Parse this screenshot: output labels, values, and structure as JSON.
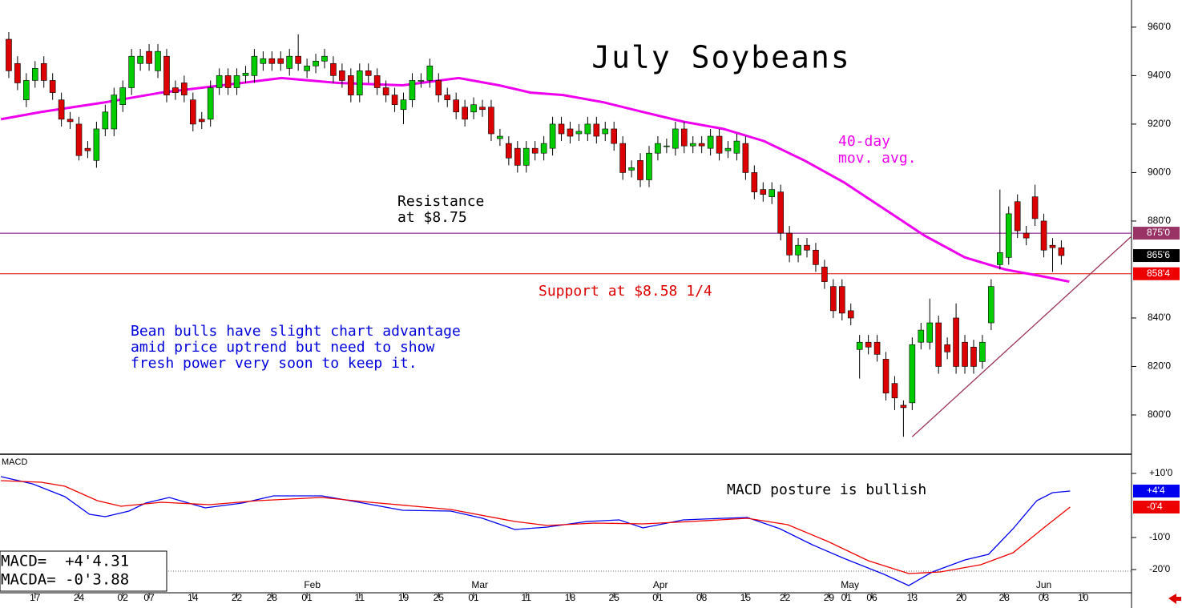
{
  "chart_data": [
    {
      "type": "candlestick",
      "title": "July Soybeans",
      "xlim": [
        -1,
        128
      ],
      "xticks": [
        {
          "value": 3,
          "label": "17"
        },
        {
          "value": 8,
          "label": "24"
        },
        {
          "value": 13,
          "label": "02"
        },
        {
          "value": 16,
          "label": "07"
        },
        {
          "value": 21,
          "label": "14"
        },
        {
          "value": 26,
          "label": "22"
        },
        {
          "value": 30,
          "label": "28"
        },
        {
          "value": 34,
          "label": "01"
        },
        {
          "value": 40,
          "label": "11"
        },
        {
          "value": 45,
          "label": "19"
        },
        {
          "value": 49,
          "label": "25"
        },
        {
          "value": 53,
          "label": "01"
        },
        {
          "value": 59,
          "label": "11"
        },
        {
          "value": 64,
          "label": "18"
        },
        {
          "value": 69,
          "label": "25"
        },
        {
          "value": 74,
          "label": "01"
        },
        {
          "value": 79,
          "label": "08"
        },
        {
          "value": 84,
          "label": "15"
        },
        {
          "value": 88.5,
          "label": "22"
        },
        {
          "value": 93.5,
          "label": "29"
        },
        {
          "value": 95.5,
          "label": "01"
        },
        {
          "value": 98.4,
          "label": "06"
        },
        {
          "value": 103,
          "label": "13"
        },
        {
          "value": 108.6,
          "label": "20"
        },
        {
          "value": 113.5,
          "label": "28"
        },
        {
          "value": 118,
          "label": "03"
        },
        {
          "value": 122.5,
          "label": "10"
        }
      ],
      "month_labels": [
        {
          "value": 34.6,
          "label": "Feb"
        },
        {
          "value": 53.7,
          "label": "Mar"
        },
        {
          "value": 74.3,
          "label": "Apr"
        },
        {
          "value": 95.9,
          "label": "May"
        },
        {
          "value": 118,
          "label": "Jun"
        }
      ],
      "ylim": [
        783.8,
        971.2
      ],
      "yticks": [
        {
          "value": 800,
          "label": "800'0"
        },
        {
          "value": 820,
          "label": "820'0"
        },
        {
          "value": 840,
          "label": "840'0"
        },
        {
          "value": 880,
          "label": "880'0"
        },
        {
          "value": 900,
          "label": "900'0"
        },
        {
          "value": 920,
          "label": "920'0"
        },
        {
          "value": 940,
          "label": "940'0"
        },
        {
          "value": 960,
          "label": "960'0"
        }
      ],
      "up_color": "#00cc00",
      "down_color": "#dd0000",
      "open": [
        955,
        945,
        930,
        938,
        945,
        938,
        930,
        922,
        920,
        910,
        905,
        918,
        918,
        928,
        935,
        945,
        950,
        942,
        948,
        935,
        937,
        930,
        922,
        922,
        935,
        940,
        935,
        940,
        940,
        945,
        947,
        947,
        943,
        948,
        942,
        944,
        946,
        945,
        942,
        940,
        932,
        942,
        940,
        935,
        932,
        926,
        930,
        938,
        938,
        938,
        932,
        930,
        927,
        925,
        927,
        927,
        914,
        912,
        910,
        903,
        910,
        908,
        910,
        920,
        918,
        916,
        916,
        920,
        916,
        918,
        912,
        901,
        905,
        897,
        908,
        911,
        910,
        918,
        911,
        912,
        910,
        915,
        909,
        908,
        912,
        900,
        893,
        890,
        892,
        875,
        866,
        870,
        868,
        861,
        853,
        853,
        843,
        827,
        830,
        830,
        823,
        813,
        804,
        805,
        830,
        830,
        838,
        829,
        840,
        830,
        828,
        822,
        838,
        862,
        865,
        888,
        875,
        890,
        880,
        870,
        869
      ],
      "high": [
        958,
        948,
        941,
        946,
        948,
        941,
        933,
        925,
        923,
        913,
        921,
        928,
        935,
        938,
        951,
        951,
        953,
        953,
        951,
        938,
        940,
        933,
        925,
        938,
        943,
        943,
        943,
        944,
        951,
        950,
        950,
        950,
        951,
        957,
        947,
        949,
        951,
        948,
        945,
        943,
        945,
        945,
        943,
        938,
        935,
        933,
        941,
        941,
        947,
        941,
        935,
        933,
        930,
        931,
        930,
        930,
        918,
        915,
        913,
        913,
        913,
        915,
        923,
        923,
        921,
        920,
        923,
        923,
        921,
        921,
        915,
        905,
        908,
        911,
        915,
        914,
        921,
        921,
        915,
        915,
        918,
        918,
        913,
        916,
        915,
        903,
        896,
        896,
        895,
        878,
        873,
        873,
        871,
        864,
        856,
        856,
        846,
        833,
        833,
        833,
        826,
        816,
        806,
        832,
        838,
        848,
        841,
        832,
        846,
        833,
        831,
        833,
        856,
        893,
        886,
        891,
        878,
        895,
        883,
        873,
        872
      ],
      "low": [
        939,
        934,
        927,
        935,
        935,
        930,
        919,
        918,
        905,
        906,
        902,
        915,
        915,
        925,
        932,
        942,
        942,
        939,
        929,
        930,
        929,
        917,
        918,
        919,
        932,
        932,
        932,
        937,
        937,
        942,
        942,
        942,
        940,
        942,
        939,
        941,
        943,
        937,
        935,
        929,
        929,
        937,
        932,
        929,
        925,
        920,
        927,
        935,
        935,
        929,
        927,
        922,
        919,
        922,
        923,
        913,
        911,
        903,
        900,
        900,
        905,
        905,
        907,
        913,
        912,
        913,
        913,
        912,
        913,
        909,
        897,
        898,
        894,
        894,
        905,
        908,
        907,
        908,
        908,
        908,
        907,
        905,
        906,
        905,
        897,
        889,
        888,
        887,
        872,
        863,
        863,
        865,
        859,
        852,
        840,
        839,
        837,
        815,
        825,
        822,
        806,
        802,
        791,
        802,
        827,
        827,
        817,
        823,
        817,
        817,
        817,
        819,
        835,
        860,
        862,
        873,
        870,
        878,
        865,
        859,
        862
      ],
      "close": [
        942,
        937,
        938,
        943,
        938,
        933,
        922,
        921,
        907,
        909,
        918,
        925,
        932,
        935,
        948,
        948,
        945,
        950,
        932,
        933,
        932,
        920,
        921,
        935,
        940,
        935,
        940,
        941,
        948,
        947,
        945,
        945,
        948,
        945,
        944,
        946,
        948,
        940,
        938,
        932,
        942,
        940,
        935,
        932,
        928,
        930,
        938,
        938,
        944,
        932,
        930,
        925,
        922,
        928,
        926,
        916,
        915,
        906,
        903,
        910,
        908,
        912,
        920,
        916,
        915,
        917,
        920,
        915,
        918,
        912,
        900,
        902,
        897,
        908,
        912,
        911,
        918,
        911,
        912,
        911,
        915,
        908,
        910,
        913,
        900,
        892,
        891,
        893,
        875,
        866,
        870,
        868,
        862,
        855,
        843,
        842,
        840,
        830,
        828,
        825,
        809,
        807,
        803,
        829,
        835,
        838,
        820,
        826,
        820,
        820,
        820,
        830,
        853,
        867,
        883,
        876,
        873,
        881,
        868,
        869,
        865.75
      ],
      "moving_average": {
        "label": [
          "40-day",
          "mov. avg."
        ],
        "color": "#ee00ee",
        "x": [
          -0.9,
          3.7,
          11,
          17.4,
          26.6,
          31.1,
          37.5,
          44.9,
          51.3,
          55.9,
          59.5,
          63.2,
          67.8,
          72.3,
          76.9,
          81.5,
          86.1,
          90.7,
          95.2,
          99.8,
          104.4,
          109,
          113.6,
          118.1,
          120.9
        ],
        "values": [
          922,
          925,
          929,
          933,
          937,
          939,
          937,
          936,
          939,
          936,
          933,
          932,
          929,
          925,
          921,
          918,
          913,
          905,
          896,
          885,
          874,
          865,
          860,
          857,
          855
        ]
      },
      "levels": [
        {
          "value": 875,
          "color": "#800080",
          "label": [
            "Resistance",
            "at $8.75"
          ],
          "tag": "875'0"
        },
        {
          "value": 858.25,
          "color": "#dd0000",
          "label": [
            "Support at $8.58 1/4"
          ],
          "tag": "858'4"
        }
      ],
      "last_price": {
        "value": 865.75,
        "label": "865'6"
      },
      "trendline": {
        "color": "#993355",
        "x": [
          103,
          128
        ],
        "values": [
          791,
          873.7
        ]
      },
      "note": [
        "Bean bulls have slight chart advantage",
        "amid price uptrend but need to show",
        "fresh power very soon to keep it."
      ]
    },
    {
      "type": "macd",
      "label": "MACD",
      "annotation": "MACD posture is bullish",
      "ylim": [
        -27.25,
        16
      ],
      "yticks": [
        {
          "value": 10,
          "label": "+10'0"
        },
        {
          "value": -10,
          "label": "-10'0"
        },
        {
          "value": -20,
          "label": "-20'0"
        }
      ],
      "dotted_line": -20.5,
      "readouts": [
        "MACD=  +4'4.31",
        "MACDA= -0'3.88"
      ],
      "series": [
        {
          "color": "#0000ee",
          "tag": "+4'4",
          "x": [
            -0.9,
            2.7,
            6.4,
            9.2,
            11,
            13.7,
            15.6,
            18.3,
            22.4,
            26.6,
            30.2,
            35.7,
            39.4,
            44.9,
            50.4,
            54,
            57.7,
            61.4,
            65.9,
            69.6,
            72.3,
            76.9,
            81.5,
            84.2,
            87.9,
            91.6,
            95.2,
            99.8,
            102.6,
            105.3,
            109,
            111.7,
            114.5,
            117.2,
            119,
            121
          ],
          "values": [
            9,
            6.75,
            2.75,
            -2.75,
            -3.5,
            -1.75,
            0.75,
            2.5,
            -0.75,
            0.75,
            3,
            3,
            1.25,
            -1.5,
            -1.75,
            -4,
            -7.5,
            -6.75,
            -5,
            -4.5,
            -7,
            -4.5,
            -4,
            -3.75,
            -7.25,
            -12.25,
            -16.5,
            -21.5,
            -25,
            -20.75,
            -17,
            -15.25,
            -7.25,
            1.5,
            4,
            4.5
          ]
        },
        {
          "color": "#ee0000",
          "tag": "-0'4",
          "x": [
            -0.9,
            3.7,
            6.4,
            10.1,
            12.8,
            17.4,
            22.9,
            28.4,
            35.7,
            41.2,
            50.4,
            57.7,
            61.4,
            66.8,
            72.3,
            77.8,
            84.2,
            88.8,
            93.4,
            98,
            102.6,
            106.2,
            110.8,
            114.5,
            118.1,
            121
          ],
          "values": [
            7.75,
            7.25,
            6,
            1.5,
            -0.25,
            1,
            0.25,
            1.5,
            2.5,
            1,
            -1.25,
            -5,
            -6.25,
            -5.5,
            -5.75,
            -5,
            -4,
            -6,
            -11.25,
            -17.25,
            -21.25,
            -20.75,
            -18.5,
            -14.75,
            -6.75,
            -0.5
          ]
        }
      ]
    }
  ]
}
